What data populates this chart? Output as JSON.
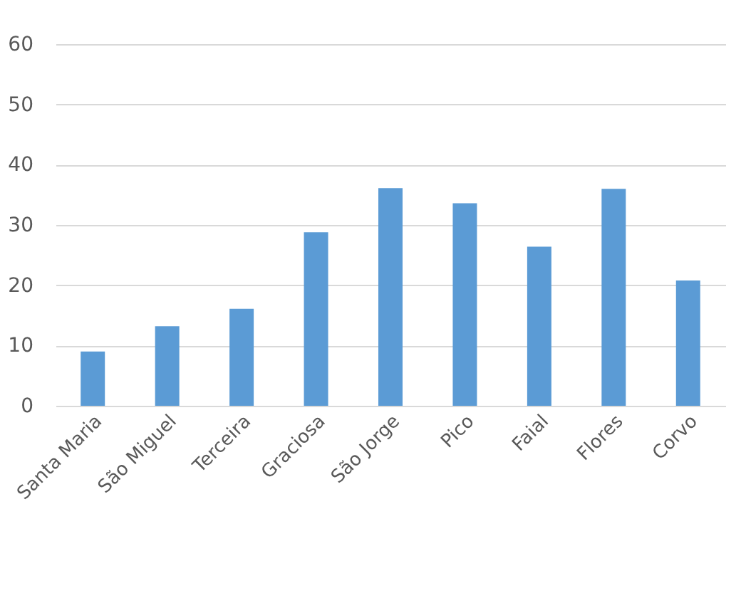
{
  "chart_data": {
    "type": "bar",
    "categories": [
      "Santa Maria",
      "São Miguel",
      "Terceira",
      "Graciosa",
      "São Jorge",
      "Pico",
      "Faial",
      "Flores",
      "Corvo"
    ],
    "values": [
      9.0,
      13.2,
      16.1,
      28.8,
      36.1,
      33.6,
      26.4,
      36.0,
      20.8
    ],
    "color": "#5b9bd5",
    "ylim": [
      0,
      60
    ],
    "yticks": [
      0,
      10,
      20,
      30,
      40,
      50,
      60
    ],
    "grid": "y"
  }
}
